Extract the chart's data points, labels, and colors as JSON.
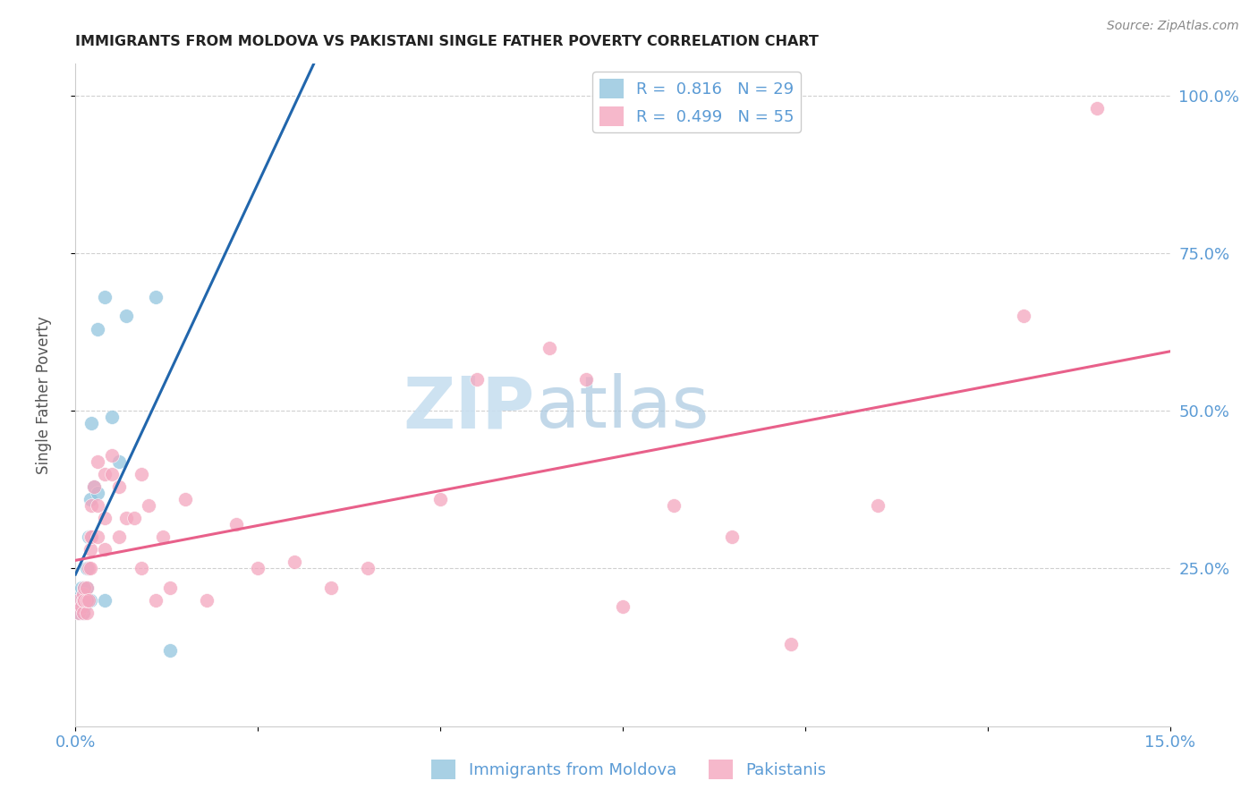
{
  "title": "IMMIGRANTS FROM MOLDOVA VS PAKISTANI SINGLE FATHER POVERTY CORRELATION CHART",
  "source": "Source: ZipAtlas.com",
  "ylabel": "Single Father Poverty",
  "xlim": [
    0.0,
    0.15
  ],
  "ylim": [
    0.0,
    1.05
  ],
  "ytick_labels": [
    "25.0%",
    "50.0%",
    "75.0%",
    "100.0%"
  ],
  "ytick_positions": [
    0.25,
    0.5,
    0.75,
    1.0
  ],
  "watermark_zip": "ZIP",
  "watermark_atlas": "atlas",
  "legend_r1": "R =  0.816",
  "legend_n1": "N = 29",
  "legend_r2": "R =  0.499",
  "legend_n2": "N = 55",
  "label1": "Immigrants from Moldova",
  "label2": "Pakistanis",
  "color1": "#92c5de",
  "color2": "#f4a6be",
  "line_color1": "#2166ac",
  "line_color2": "#e8608a",
  "title_color": "#222222",
  "axis_label_color": "#555555",
  "tick_label_color": "#5b9bd5",
  "grid_color": "#d0d0d0",
  "moldova_x": [
    0.0005,
    0.0005,
    0.0008,
    0.0008,
    0.0008,
    0.001,
    0.001,
    0.001,
    0.0012,
    0.0012,
    0.0012,
    0.0015,
    0.0015,
    0.0015,
    0.0018,
    0.0018,
    0.002,
    0.002,
    0.0022,
    0.0025,
    0.003,
    0.003,
    0.004,
    0.004,
    0.005,
    0.006,
    0.007,
    0.011,
    0.013
  ],
  "moldova_y": [
    0.18,
    0.2,
    0.19,
    0.21,
    0.22,
    0.18,
    0.2,
    0.21,
    0.2,
    0.22,
    0.19,
    0.2,
    0.22,
    0.25,
    0.2,
    0.3,
    0.2,
    0.36,
    0.48,
    0.38,
    0.37,
    0.63,
    0.2,
    0.68,
    0.49,
    0.42,
    0.65,
    0.68,
    0.12
  ],
  "pakistan_x": [
    0.0005,
    0.0005,
    0.0008,
    0.001,
    0.001,
    0.001,
    0.0012,
    0.0012,
    0.0015,
    0.0015,
    0.0015,
    0.0018,
    0.0018,
    0.002,
    0.002,
    0.002,
    0.0022,
    0.0022,
    0.0025,
    0.003,
    0.003,
    0.003,
    0.004,
    0.004,
    0.004,
    0.005,
    0.005,
    0.006,
    0.006,
    0.007,
    0.008,
    0.009,
    0.009,
    0.01,
    0.011,
    0.012,
    0.013,
    0.015,
    0.018,
    0.022,
    0.025,
    0.03,
    0.035,
    0.04,
    0.05,
    0.055,
    0.065,
    0.07,
    0.075,
    0.082,
    0.09,
    0.098,
    0.11,
    0.13,
    0.14
  ],
  "pakistan_y": [
    0.18,
    0.2,
    0.19,
    0.18,
    0.2,
    0.21,
    0.2,
    0.22,
    0.18,
    0.2,
    0.22,
    0.2,
    0.25,
    0.25,
    0.28,
    0.3,
    0.3,
    0.35,
    0.38,
    0.3,
    0.35,
    0.42,
    0.28,
    0.33,
    0.4,
    0.4,
    0.43,
    0.3,
    0.38,
    0.33,
    0.33,
    0.25,
    0.4,
    0.35,
    0.2,
    0.3,
    0.22,
    0.36,
    0.2,
    0.32,
    0.25,
    0.26,
    0.22,
    0.25,
    0.36,
    0.55,
    0.6,
    0.55,
    0.19,
    0.35,
    0.3,
    0.13,
    0.35,
    0.65,
    0.98
  ]
}
